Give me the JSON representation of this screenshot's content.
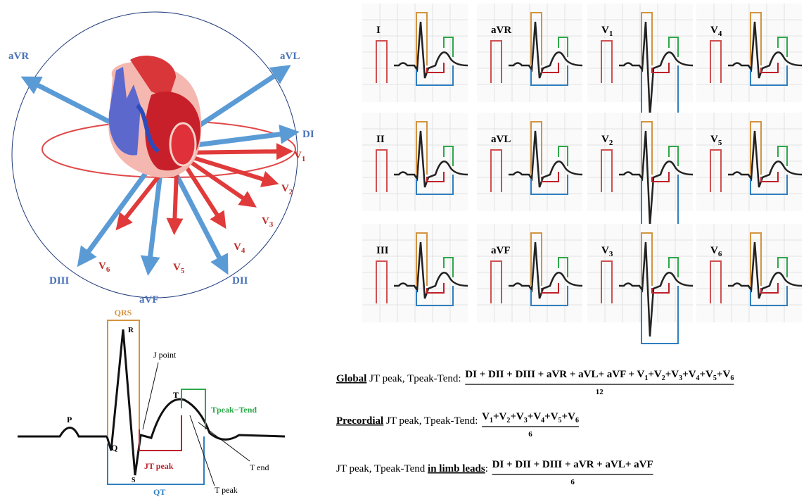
{
  "lead_diagram": {
    "limb_leads": [
      "aVR",
      "aVL",
      "DI",
      "DIII",
      "aVF",
      "DII"
    ],
    "precordial_leads": [
      {
        "letter": "V",
        "sub": "1"
      },
      {
        "letter": "V",
        "sub": "2"
      },
      {
        "letter": "V",
        "sub": "3"
      },
      {
        "letter": "V",
        "sub": "4"
      },
      {
        "letter": "V",
        "sub": "5"
      },
      {
        "letter": "V",
        "sub": "6"
      }
    ]
  },
  "ecg_panels": [
    {
      "text": "I"
    },
    {
      "text": "aVR"
    },
    {
      "text": "V",
      "sub": "1"
    },
    {
      "text": "V",
      "sub": "4"
    },
    {
      "text": "II"
    },
    {
      "text": "aVL"
    },
    {
      "text": "V",
      "sub": "2"
    },
    {
      "text": "V",
      "sub": "5"
    },
    {
      "text": "III"
    },
    {
      "text": "aVF"
    },
    {
      "text": "V",
      "sub": "3"
    },
    {
      "text": "V",
      "sub": "6"
    }
  ],
  "waveform": {
    "qrs": "QRS",
    "r": "R",
    "j_point": "J point",
    "p": "P",
    "q": "Q",
    "s": "S",
    "t": "T",
    "tpeak_tend": "Tpeak−Tend",
    "jt_peak": "JT peak",
    "qt": "QT",
    "t_end": "T end",
    "t_peak": "T peak"
  },
  "formulas": [
    {
      "emphasis": "Global",
      "lead_in": " JT peak, Tpeak-Tend: ",
      "numerator": [
        {
          "text": "DI + DII + DIII + aVR + aVL+ aVF + V"
        },
        {
          "sub": "1"
        },
        {
          "text": "+V"
        },
        {
          "sub": "2"
        },
        {
          "text": "+V"
        },
        {
          "sub": "3"
        },
        {
          "text": "+V"
        },
        {
          "sub": "4"
        },
        {
          "text": "+V"
        },
        {
          "sub": "5"
        },
        {
          "text": "+V"
        },
        {
          "sub": "6"
        }
      ],
      "denominator": "12"
    },
    {
      "emphasis": "Precordial",
      "lead_in": " JT peak, Tpeak-Tend: ",
      "numerator": [
        {
          "text": "V"
        },
        {
          "sub": "1"
        },
        {
          "text": "+V"
        },
        {
          "sub": "2"
        },
        {
          "text": "+V"
        },
        {
          "sub": "3"
        },
        {
          "text": "+V"
        },
        {
          "sub": "4"
        },
        {
          "text": "+V"
        },
        {
          "sub": "5"
        },
        {
          "text": "+V"
        },
        {
          "sub": "6"
        }
      ],
      "denominator": "6"
    },
    {
      "prefix": "JT peak, Tpeak-Tend ",
      "emphasis": "in limb leads",
      "lead_in": ": ",
      "numerator": [
        {
          "text": "DI + DII + DIII + aVR + aVL+ aVF"
        }
      ],
      "denominator": "6"
    }
  ]
}
